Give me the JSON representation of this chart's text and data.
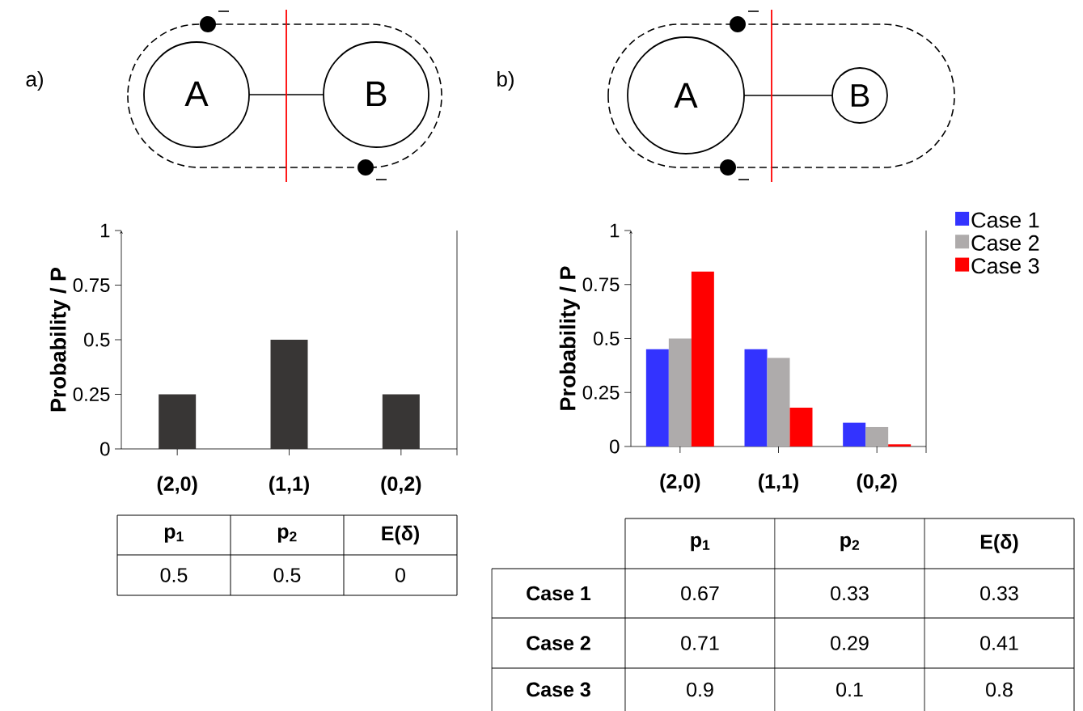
{
  "chart_data": [
    {
      "type": "bar",
      "ylabel": "Probability / P",
      "categories": [
        "(2,0)",
        "(1,1)",
        "(0,2)"
      ],
      "values": [
        0.25,
        0.5,
        0.25
      ],
      "color": "#383635",
      "ylim": [
        0,
        1
      ],
      "yticks": [
        0,
        0.25,
        0.5,
        0.75,
        1
      ],
      "annotations": [
        "a)",
        "A",
        "B"
      ]
    },
    {
      "type": "bar",
      "ylabel": "Probability / P",
      "categories": [
        "(2,0)",
        "(1,1)",
        "(0,2)"
      ],
      "ylim": [
        0,
        1
      ],
      "yticks": [
        0,
        0.25,
        0.5,
        0.75,
        1
      ],
      "legend": "top right",
      "annotations": [
        "b)",
        "A",
        "B"
      ],
      "series": [
        {
          "name": "Case 1",
          "color": "#3333ff",
          "values": [
            0.45,
            0.45,
            0.11
          ]
        },
        {
          "name": "Case 2",
          "color": "#aeabab",
          "values": [
            0.5,
            0.41,
            0.09
          ]
        },
        {
          "name": "Case 3",
          "color": "#ff0000",
          "values": [
            0.81,
            0.18,
            0.01
          ]
        }
      ]
    },
    {
      "type": "other",
      "categories": [
        "p$_{1}$",
        "p$_{2}$",
        "E(δ)"
      ],
      "values": [
        0.5,
        0.5,
        0
      ],
      "data_labels": true
    },
    {
      "type": "other",
      "categories": [
        "p$_{1}$",
        "p$_{2}$",
        "E(δ)"
      ],
      "data_labels": true,
      "series": [
        {
          "name": "Case 1",
          "values": [
            0.67,
            0.33,
            0.33
          ]
        },
        {
          "name": "Case 2",
          "values": [
            0.71,
            0.29,
            0.41
          ]
        },
        {
          "name": "Case 3",
          "values": [
            0.9,
            0.1,
            0.8
          ]
        }
      ]
    }
  ]
}
